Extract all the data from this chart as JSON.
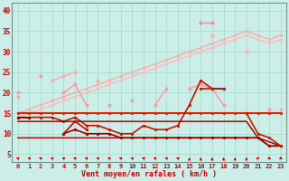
{
  "x": [
    0,
    1,
    2,
    3,
    4,
    5,
    6,
    7,
    8,
    9,
    10,
    11,
    12,
    13,
    14,
    15,
    16,
    17,
    18,
    19,
    20,
    21,
    22,
    23
  ],
  "series": [
    {
      "name": "upper_line1",
      "color": "#ffaaaa",
      "lw": 1.0,
      "marker": "o",
      "markersize": 2.0,
      "y": [
        15,
        16,
        17,
        18,
        19,
        20,
        21,
        22,
        23,
        24,
        25,
        26,
        27,
        28,
        29,
        30,
        31,
        32,
        33,
        34,
        35,
        34,
        33,
        34
      ]
    },
    {
      "name": "upper_line2",
      "color": "#ffbbbb",
      "lw": 1.0,
      "marker": "o",
      "markersize": 2.0,
      "y": [
        14,
        15,
        16,
        17,
        18,
        19,
        20,
        21,
        22,
        23,
        24,
        25,
        26,
        27,
        28,
        29,
        30,
        31,
        32,
        33,
        34,
        33,
        32,
        33
      ]
    },
    {
      "name": "zigzag_pink",
      "color": "#ff9999",
      "lw": 1.0,
      "marker": "o",
      "markersize": 2.5,
      "y": [
        20,
        null,
        24,
        null,
        20,
        22,
        17,
        null,
        17,
        null,
        18,
        null,
        17,
        21,
        null,
        21,
        22,
        21,
        17,
        null,
        null,
        null,
        16,
        null
      ]
    },
    {
      "name": "peak_line",
      "color": "#ff8888",
      "lw": 1.0,
      "marker": "o",
      "markersize": 2.5,
      "y": [
        null,
        null,
        null,
        null,
        null,
        null,
        null,
        null,
        null,
        null,
        null,
        null,
        null,
        null,
        null,
        null,
        37,
        37,
        null,
        null,
        null,
        null,
        null,
        null
      ]
    },
    {
      "name": "upper_zigzag",
      "color": "#ffaaaa",
      "lw": 1.0,
      "marker": "o",
      "markersize": 2.5,
      "y": [
        19,
        null,
        null,
        23,
        24,
        25,
        null,
        23,
        null,
        null,
        null,
        null,
        null,
        null,
        null,
        null,
        null,
        null,
        null,
        null,
        null,
        null,
        null,
        null
      ]
    },
    {
      "name": "right_segment",
      "color": "#ffaaaa",
      "lw": 1.0,
      "marker": "o",
      "markersize": 2.5,
      "y": [
        null,
        null,
        null,
        null,
        null,
        null,
        null,
        null,
        null,
        null,
        null,
        null,
        null,
        null,
        null,
        null,
        null,
        34,
        null,
        null,
        30,
        null,
        null,
        16
      ]
    },
    {
      "name": "flat_mid",
      "color": "#dd2200",
      "lw": 1.5,
      "marker": "o",
      "markersize": 2.0,
      "y": [
        15,
        15,
        15,
        15,
        15,
        15,
        15,
        15,
        15,
        15,
        15,
        15,
        15,
        15,
        15,
        15,
        15,
        15,
        15,
        15,
        15,
        15,
        15,
        15
      ]
    },
    {
      "name": "mid_vary",
      "color": "#cc1100",
      "lw": 1.2,
      "marker": "o",
      "markersize": 2.0,
      "y": [
        14,
        14,
        14,
        14,
        13,
        14,
        12,
        12,
        11,
        10,
        10,
        12,
        11,
        11,
        12,
        17,
        23,
        21,
        21,
        null,
        null,
        null,
        null,
        null
      ]
    },
    {
      "name": "mid_vary2",
      "color": "#cc1100",
      "lw": 1.2,
      "marker": "o",
      "markersize": 2.0,
      "y": [
        null,
        null,
        null,
        null,
        null,
        null,
        null,
        null,
        null,
        null,
        null,
        null,
        null,
        null,
        null,
        null,
        21,
        21,
        21,
        null,
        null,
        null,
        null,
        null
      ]
    },
    {
      "name": "low_flat",
      "color": "#990000",
      "lw": 1.2,
      "marker": "o",
      "markersize": 2.0,
      "y": [
        14,
        14,
        null,
        null,
        10,
        11,
        10,
        10,
        10,
        9,
        9,
        9,
        9,
        9,
        9,
        9,
        9,
        9,
        9,
        9,
        9,
        9,
        7,
        7
      ]
    },
    {
      "name": "very_low",
      "color": "#880000",
      "lw": 1.0,
      "marker": null,
      "markersize": 1.5,
      "y": [
        13,
        13,
        13,
        13,
        13,
        13,
        13,
        13,
        13,
        13,
        13,
        13,
        13,
        13,
        13,
        13,
        13,
        13,
        13,
        13,
        13,
        9,
        8,
        7
      ]
    },
    {
      "name": "bottom_line",
      "color": "#aa0000",
      "lw": 1.0,
      "marker": null,
      "markersize": 1.5,
      "y": [
        9,
        9,
        9,
        9,
        9,
        9,
        9,
        9,
        9,
        9,
        9,
        9,
        9,
        9,
        9,
        9,
        9,
        9,
        9,
        9,
        9,
        9,
        7,
        7
      ]
    },
    {
      "name": "small_peak",
      "color": "#cc0000",
      "lw": 1.2,
      "marker": "o",
      "markersize": 2.0,
      "y": [
        null,
        null,
        null,
        null,
        10,
        13,
        11,
        null,
        null,
        null,
        null,
        null,
        null,
        null,
        null,
        null,
        null,
        null,
        null,
        null,
        null,
        null,
        null,
        null
      ]
    },
    {
      "name": "right_drop",
      "color": "#dd1100",
      "lw": 1.2,
      "marker": "o",
      "markersize": 2.0,
      "y": [
        null,
        null,
        null,
        null,
        null,
        null,
        null,
        null,
        null,
        null,
        null,
        null,
        null,
        null,
        null,
        null,
        null,
        null,
        null,
        null,
        15,
        10,
        9,
        7
      ]
    }
  ],
  "yticks": [
    5,
    10,
    15,
    20,
    25,
    30,
    35,
    40
  ],
  "xticks": [
    0,
    1,
    2,
    3,
    4,
    5,
    6,
    7,
    8,
    9,
    10,
    11,
    12,
    13,
    14,
    15,
    16,
    17,
    18,
    19,
    20,
    21,
    22,
    23
  ],
  "ylim": [
    3,
    42
  ],
  "xlim": [
    -0.5,
    23.5
  ],
  "xlabel": "Vent moyen/en rafales ( km/h )",
  "bg_color": "#cceee8",
  "grid_color": "#aaddcc",
  "axis_color": "#cc0000",
  "label_color": "#cc0000",
  "arrow_angles": [
    225,
    225,
    225,
    225,
    225,
    225,
    225,
    225,
    225,
    225,
    225,
    225,
    225,
    225,
    225,
    180,
    180,
    180,
    180,
    180,
    180,
    135,
    45,
    45
  ]
}
